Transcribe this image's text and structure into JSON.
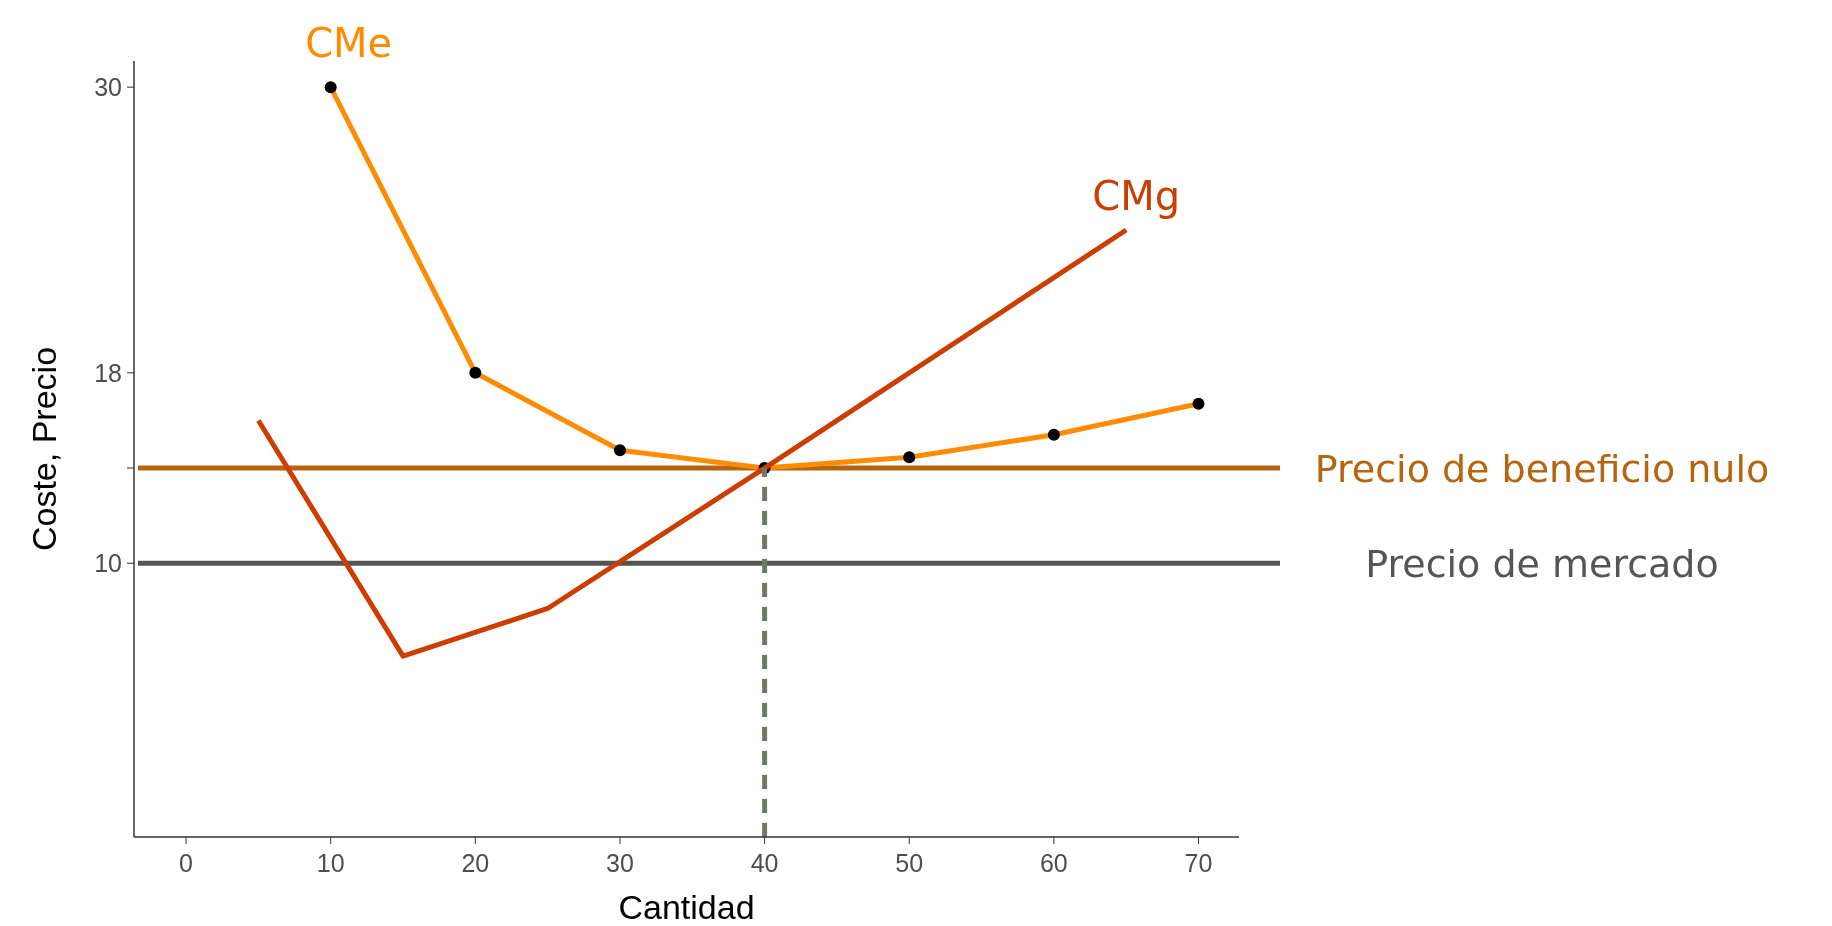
{
  "chart_data": {
    "type": "line",
    "xlabel": "Cantidad",
    "ylabel": "Coste, Precio",
    "xlim": [
      -3.6,
      72.8
    ],
    "ylim": [
      -1.5,
      31.1
    ],
    "xticks": [
      0,
      10,
      20,
      30,
      40,
      50,
      60,
      70
    ],
    "yticks": [
      10,
      {
        "value": 14,
        "label": null
      },
      18,
      30
    ],
    "series": [
      {
        "name": "CMe",
        "color": "#ff8c00",
        "x": [
          10,
          20,
          30,
          40,
          50,
          60,
          70
        ],
        "values": [
          30,
          18,
          14.75,
          14,
          14.45,
          15.4,
          16.7
        ],
        "marker": "circle"
      },
      {
        "name": "CMg",
        "color": "#cc3d00",
        "x": [
          5,
          15,
          25,
          40,
          65
        ],
        "values": [
          16,
          6.1,
          8.1,
          14,
          24
        ],
        "marker": "none"
      },
      {
        "color": "#6b7b62",
        "x": [
          40,
          40
        ],
        "values": [
          -1.5,
          14
        ],
        "line_style": "dashed",
        "marker": "none"
      }
    ],
    "ref_lines": [
      {
        "axis": "y",
        "value": 14,
        "label": "Precio de beneficio nulo",
        "color": "#b5650f"
      },
      {
        "axis": "y",
        "value": 10,
        "label": "Precio de mercado",
        "color": "#555555"
      }
    ]
  }
}
